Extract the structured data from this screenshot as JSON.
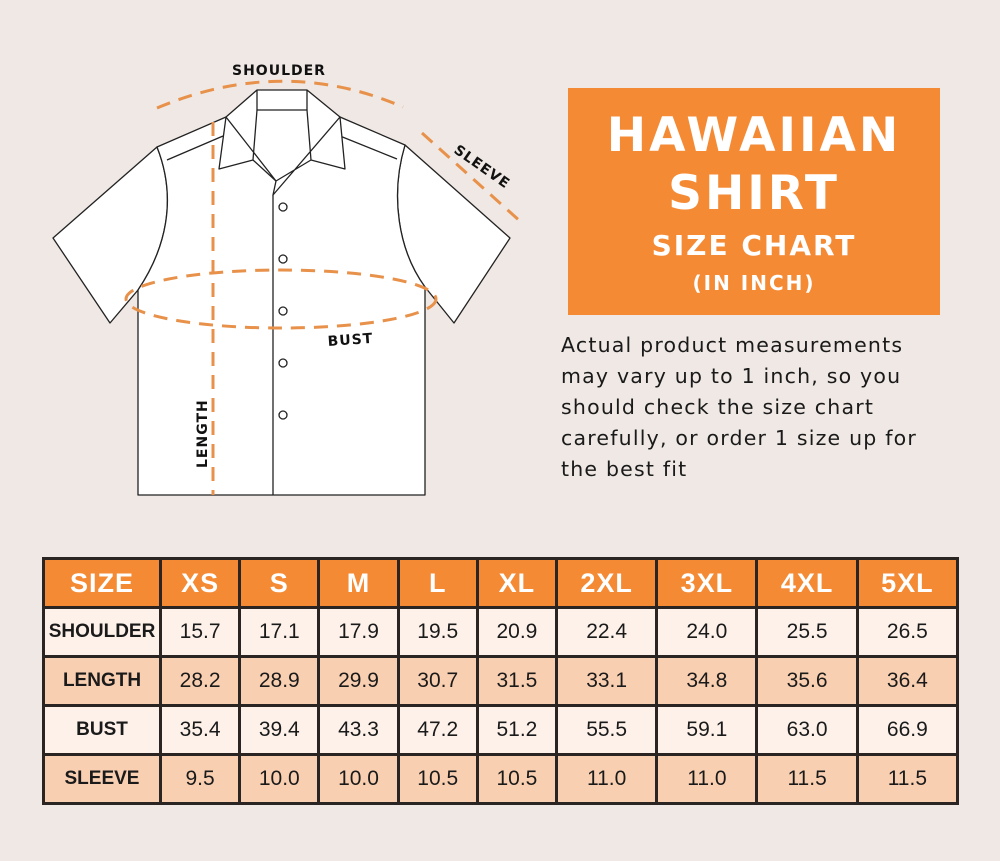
{
  "diagram": {
    "labels": {
      "shoulder": "SHOULDER",
      "sleeve": "SLEEVE",
      "bust": "BUST",
      "length": "LENGTH"
    },
    "dash_color": "#e8914a"
  },
  "title_box": {
    "line1": "HAWAIIAN",
    "line2": "SHIRT",
    "line3": "SIZE CHART",
    "line4": "(IN INCH)",
    "color": "#f58a35"
  },
  "note": [
    "Actual product measurements",
    "may vary up to 1 inch, so you",
    "should check the size chart",
    "carefully, or order 1 size up for",
    "the best fit"
  ],
  "table": {
    "header": [
      "SIZE",
      "XS",
      "S",
      "M",
      "L",
      "XL",
      "2XL",
      "3XL",
      "4XL",
      "5XL"
    ],
    "rows": [
      {
        "label": "SHOULDER",
        "values": [
          "15.7",
          "17.1",
          "17.9",
          "19.5",
          "20.9",
          "22.4",
          "24.0",
          "25.5",
          "26.5"
        ]
      },
      {
        "label": "LENGTH",
        "values": [
          "28.2",
          "28.9",
          "29.9",
          "30.7",
          "31.5",
          "33.1",
          "34.8",
          "35.6",
          "36.4"
        ]
      },
      {
        "label": "BUST",
        "values": [
          "35.4",
          "39.4",
          "43.3",
          "47.2",
          "51.2",
          "55.5",
          "59.1",
          "63.0",
          "66.9"
        ]
      },
      {
        "label": "SLEEVE",
        "values": [
          "9.5",
          "10.0",
          "10.0",
          "10.5",
          "10.5",
          "11.0",
          "11.0",
          "11.5",
          "11.5"
        ]
      }
    ]
  }
}
